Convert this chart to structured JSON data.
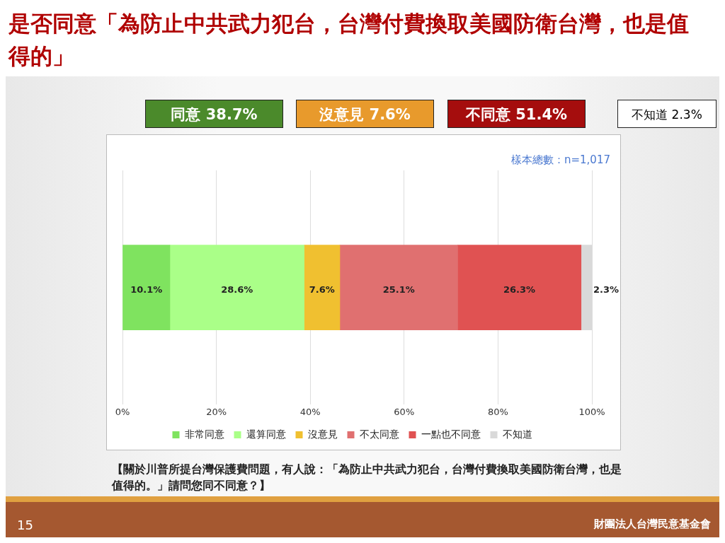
{
  "chart_data": {
    "type": "bar",
    "orientation": "horizontal",
    "stacked": true,
    "title": "是否同意「為防止中共武力犯台，台灣付費換取美國防衛台灣，也是值得的」",
    "categories": [
      null
    ],
    "series": [
      {
        "name": "非常同意",
        "color": "#7fe35f",
        "values": [
          10.1
        ],
        "value_labels": [
          "10.1%"
        ]
      },
      {
        "name": "還算同意",
        "color": "#aaff88",
        "values": [
          28.6
        ],
        "value_labels": [
          "28.6%"
        ]
      },
      {
        "name": "沒意見",
        "color": "#f0c030",
        "values": [
          7.6
        ],
        "value_labels": [
          "7.6%"
        ]
      },
      {
        "name": "不太同意",
        "color": "#e07070",
        "values": [
          25.1
        ],
        "value_labels": [
          "25.1%"
        ]
      },
      {
        "name": "一點也不同意",
        "color": "#e05252",
        "values": [
          26.3
        ],
        "value_labels": [
          "26.3%"
        ]
      },
      {
        "name": "不知道",
        "color": "#d9d9d9",
        "values": [
          2.3
        ],
        "value_labels": [
          "2.3%"
        ]
      }
    ],
    "xlim": [
      0,
      100
    ],
    "xticks": [
      {
        "value": 0,
        "label": "0%"
      },
      {
        "value": 20,
        "label": "20%"
      },
      {
        "value": 40,
        "label": "40%"
      },
      {
        "value": 60,
        "label": "60%"
      },
      {
        "value": 80,
        "label": "80%"
      },
      {
        "value": 100,
        "label": "100%"
      }
    ],
    "grid": "x",
    "legend": "bottom",
    "annotations": [
      "同意 38.7%",
      "沒意見 7.6%",
      "不同意 51.4%",
      "不知道 2.3%",
      "樣本總數：n=1,017",
      "【關於川普所提台灣保護費問題，有人說：「為防止中共武力犯台，台灣付費換取美國防衛台灣，也是值得的。」請問您同不同意？】",
      "15",
      "財團法人台灣民意基金會"
    ]
  }
}
